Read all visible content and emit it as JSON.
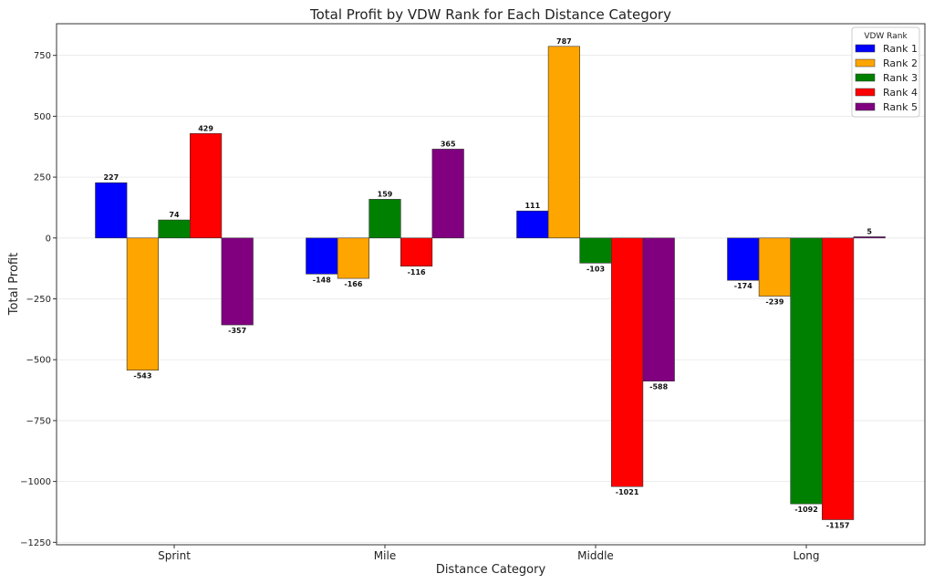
{
  "chart_data": {
    "type": "bar",
    "title": "Total Profit by VDW Rank for Each Distance Category",
    "xlabel": "Distance Category",
    "ylabel": "Total Profit",
    "categories": [
      "Sprint",
      "Mile",
      "Middle",
      "Long"
    ],
    "ylim": [
      -1260,
      880
    ],
    "yticks": [
      750,
      500,
      250,
      0,
      -250,
      -500,
      -750,
      -1000,
      -1250
    ],
    "ytick_labels": [
      "750",
      "500",
      "250",
      "0",
      "−250",
      "−500",
      "−750",
      "−1000",
      "−1250"
    ],
    "grid": true,
    "legend": {
      "title": "VDW Rank",
      "placement": "top-right"
    },
    "series": [
      {
        "name": "Rank 1",
        "color": "#0000ff",
        "values": [
          227,
          -148,
          111,
          -174
        ]
      },
      {
        "name": "Rank 2",
        "color": "#ffa500",
        "values": [
          -543,
          -166,
          787,
          -239
        ]
      },
      {
        "name": "Rank 3",
        "color": "#008000",
        "values": [
          74,
          159,
          -103,
          -1092
        ]
      },
      {
        "name": "Rank 4",
        "color": "#ff0000",
        "values": [
          429,
          -116,
          -1021,
          -1157
        ]
      },
      {
        "name": "Rank 5",
        "color": "#800080",
        "values": [
          -357,
          365,
          -588,
          5
        ]
      }
    ]
  }
}
